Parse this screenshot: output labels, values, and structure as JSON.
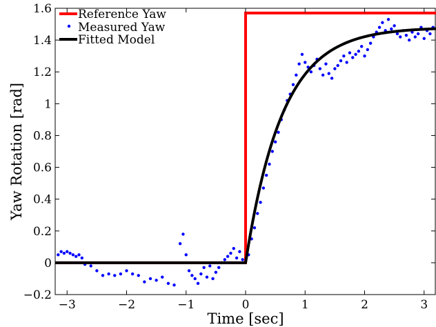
{
  "chart_data": {
    "type": "line",
    "title": "",
    "xlabel": "Time [sec]",
    "ylabel": "Yaw Rotation [rad]",
    "xlim": [
      -3.2,
      3.2
    ],
    "ylim": [
      -0.2,
      1.6
    ],
    "xticks": [
      -3,
      -2,
      -1,
      0,
      1,
      2,
      3
    ],
    "xtick_labels": [
      "−3",
      "−2",
      "−1",
      "0",
      "1",
      "2",
      "3"
    ],
    "yticks": [
      -0.2,
      0,
      0.2,
      0.4,
      0.6,
      0.8,
      1,
      1.2,
      1.4,
      1.6
    ],
    "ytick_labels": [
      "−0.2",
      "0",
      "0.2",
      "0.4",
      "0.6",
      "0.8",
      "1",
      "1.2",
      "1.4",
      "1.6"
    ],
    "grid": false,
    "legend": "top-left",
    "series": [
      {
        "name": "Reference Yaw",
        "style": "line",
        "color": "#ff0000",
        "x": [
          -3.2,
          0,
          0,
          3.2
        ],
        "y": [
          0,
          0,
          1.57,
          1.57
        ]
      },
      {
        "name": "Measured Yaw",
        "style": "points",
        "color": "#0000ff",
        "x": [
          -3.15,
          -3.1,
          -3.05,
          -3.0,
          -2.95,
          -2.9,
          -2.85,
          -2.8,
          -2.75,
          -2.7,
          -2.6,
          -2.5,
          -2.4,
          -2.3,
          -2.2,
          -2.1,
          -2.0,
          -1.9,
          -1.8,
          -1.7,
          -1.6,
          -1.5,
          -1.4,
          -1.3,
          -1.2,
          -1.1,
          -1.05,
          -1.0,
          -0.95,
          -0.9,
          -0.85,
          -0.8,
          -0.75,
          -0.7,
          -0.65,
          -0.6,
          -0.55,
          -0.5,
          -0.45,
          -0.4,
          -0.35,
          -0.3,
          -0.25,
          -0.2,
          -0.15,
          -0.1,
          -0.05,
          0.05,
          0.1,
          0.15,
          0.2,
          0.25,
          0.3,
          0.35,
          0.4,
          0.45,
          0.5,
          0.55,
          0.6,
          0.65,
          0.7,
          0.75,
          0.8,
          0.85,
          0.9,
          0.95,
          1.0,
          1.05,
          1.1,
          1.15,
          1.2,
          1.25,
          1.3,
          1.35,
          1.4,
          1.45,
          1.5,
          1.55,
          1.6,
          1.65,
          1.7,
          1.75,
          1.8,
          1.85,
          1.9,
          1.95,
          2.0,
          2.05,
          2.1,
          2.15,
          2.2,
          2.25,
          2.3,
          2.35,
          2.4,
          2.45,
          2.5,
          2.55,
          2.6,
          2.65,
          2.7,
          2.75,
          2.8,
          2.85,
          2.9,
          2.95,
          3.0,
          3.05,
          3.1,
          3.15
        ],
        "y": [
          0.05,
          0.07,
          0.06,
          0.07,
          0.06,
          0.05,
          0.04,
          0.05,
          0.03,
          -0.01,
          -0.02,
          -0.05,
          -0.08,
          -0.07,
          -0.08,
          -0.07,
          -0.05,
          -0.07,
          -0.08,
          -0.12,
          -0.1,
          -0.11,
          -0.09,
          -0.13,
          -0.14,
          0.12,
          0.18,
          0.05,
          -0.05,
          -0.08,
          -0.1,
          -0.13,
          -0.07,
          -0.03,
          -0.09,
          -0.02,
          -0.1,
          -0.06,
          -0.03,
          0.0,
          0.02,
          0.04,
          0.06,
          0.09,
          0.03,
          0.07,
          0.02,
          0.05,
          0.15,
          0.22,
          0.31,
          0.38,
          0.47,
          0.55,
          0.62,
          0.7,
          0.76,
          0.82,
          0.9,
          0.96,
          1.02,
          1.06,
          1.12,
          1.18,
          1.25,
          1.31,
          1.26,
          1.23,
          1.2,
          1.24,
          1.28,
          1.22,
          1.18,
          1.25,
          1.19,
          1.16,
          1.22,
          1.24,
          1.27,
          1.3,
          1.26,
          1.32,
          1.29,
          1.31,
          1.33,
          1.36,
          1.3,
          1.34,
          1.38,
          1.42,
          1.45,
          1.48,
          1.51,
          1.46,
          1.53,
          1.47,
          1.49,
          1.44,
          1.42,
          1.46,
          1.43,
          1.4,
          1.45,
          1.42,
          1.44,
          1.48,
          1.41,
          1.46,
          1.44,
          1.48
        ]
      },
      {
        "name": "Fitted Model",
        "style": "line",
        "color": "#000000",
        "model": {
          "gain": 1.48,
          "time_constant": 0.62,
          "onset": 0
        },
        "x": [
          -3.2,
          0
        ]
      }
    ]
  }
}
